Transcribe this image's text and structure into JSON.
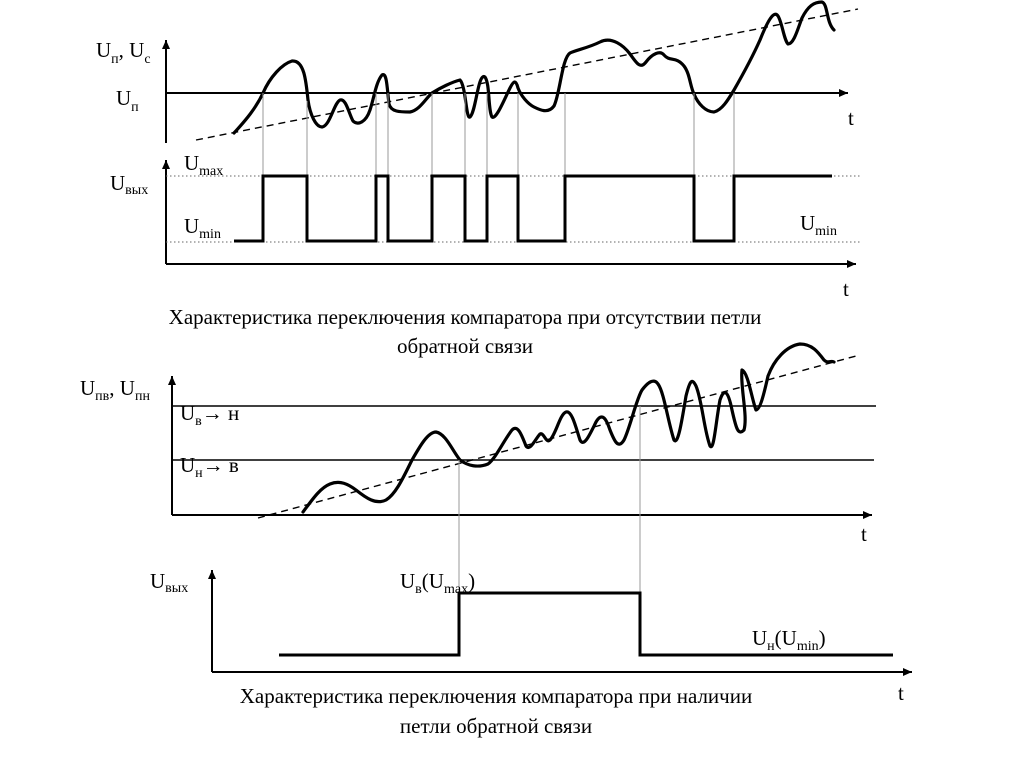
{
  "top": {
    "y_axis_label": {
      "main1": "U",
      "sub1": "п",
      "sep": ", U",
      "sub2": "с"
    },
    "threshold_label": {
      "main": "U",
      "sub": "п"
    },
    "t_label_signal": "t",
    "out_axis_label": {
      "main": "U",
      "sub": "вых"
    },
    "umax_label": {
      "main": "U",
      "sub": "max"
    },
    "umin_left_label": {
      "main": "U",
      "sub": "min"
    },
    "umin_right_label": {
      "main": "U",
      "sub": "min"
    },
    "t_label_out": "t",
    "caption_line1": "Характеристика переключения компаратора при отсутствии петли",
    "caption_line2": "обратной связи"
  },
  "bottom": {
    "y_axis_label": {
      "main1": "U",
      "sub1": "пв",
      "sep": ", U",
      "sub2": "пн"
    },
    "upper_threshold_label": {
      "main": "U",
      "sub": "в",
      "arrow": "→",
      "tail": " н"
    },
    "lower_threshold_label": {
      "main": "U",
      "sub": "н",
      "arrow": "→",
      "tail": " в"
    },
    "t_label_signal": "t",
    "out_axis_label": {
      "main": "U",
      "sub": "вых"
    },
    "high_level_label": {
      "main": "U",
      "sub": "в",
      "paren_open": "(U",
      "sub2": "max",
      "paren_close": ")"
    },
    "low_level_label": {
      "main": "U",
      "sub": "н",
      "paren_open": "(U",
      "sub2": "min",
      "paren_close": ")"
    },
    "t_label_out": "t",
    "caption_line1": "Характеристика переключения компаратора при наличии",
    "caption_line2": "петли обратной связи"
  }
}
